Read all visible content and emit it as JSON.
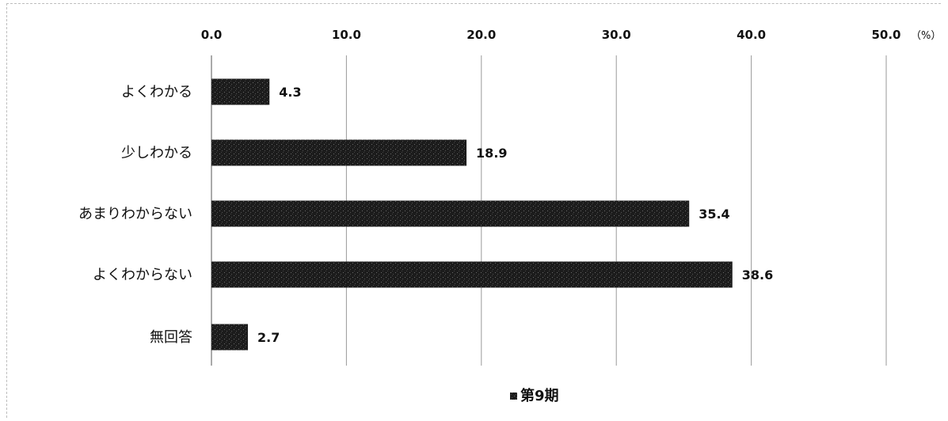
{
  "chart_data": {
    "type": "bar",
    "orientation": "horizontal",
    "categories": [
      "よくわかる",
      "少しわかる",
      "あまりわからない",
      "よくわからない",
      "無回答"
    ],
    "series": [
      {
        "name": "第9期",
        "values": [
          4.3,
          18.9,
          35.4,
          38.6,
          2.7
        ]
      }
    ],
    "value_labels": [
      "4.3",
      "18.9",
      "35.4",
      "38.6",
      "2.7"
    ],
    "xlim": [
      0,
      50
    ],
    "xticks": [
      "0.0",
      "10.0",
      "20.0",
      "30.0",
      "40.0",
      "50.0"
    ],
    "unit": "（%）",
    "grid": true,
    "legend_position": "bottom-center",
    "bar_color": "#1c1c1c"
  }
}
